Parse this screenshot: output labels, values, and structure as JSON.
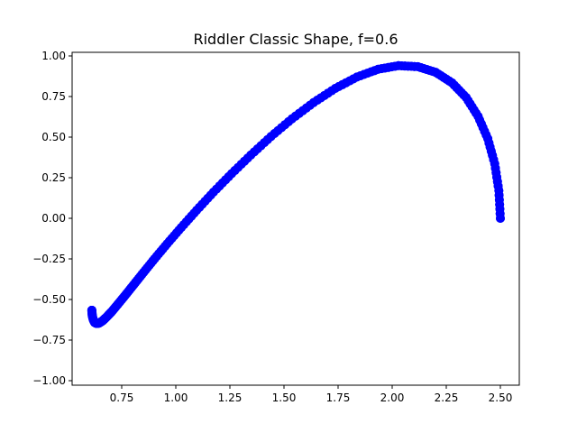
{
  "chart_data": {
    "type": "scatter",
    "title": "Riddler Classic Shape, f=0.6",
    "xlabel": "",
    "ylabel": "",
    "xlim": [
      0.56,
      2.6
    ],
    "ylim": [
      -1.02,
      1.03
    ],
    "xticks": [
      0.75,
      1.0,
      1.25,
      1.5,
      1.75,
      2.0,
      2.25,
      2.5
    ],
    "xtick_labels": [
      "0.75",
      "1.00",
      "1.25",
      "1.50",
      "1.75",
      "2.00",
      "2.25",
      "2.50"
    ],
    "yticks": [
      -1.0,
      -0.75,
      -0.5,
      -0.25,
      0.0,
      0.25,
      0.5,
      0.75,
      1.0
    ],
    "ytick_labels": [
      "−1.00",
      "−0.75",
      "−0.50",
      "−0.25",
      "0.00",
      "0.25",
      "0.50",
      "0.75",
      "1.00"
    ],
    "grid": false,
    "legend": "none",
    "marker_color": "#0000ff",
    "series": [
      {
        "x": [
          2.5,
          2.493,
          2.474,
          2.442,
          2.397,
          2.342,
          2.276,
          2.201,
          2.118,
          2.029,
          1.935,
          1.837,
          1.737,
          1.637,
          1.537,
          1.44,
          1.347,
          1.258,
          1.174,
          1.096,
          1.025,
          0.96,
          0.902,
          0.851,
          0.806,
          0.767,
          0.733,
          0.705,
          0.681,
          0.662,
          0.646,
          0.634,
          0.625,
          0.619,
          0.614,
          0.612,
          0.612,
          0.614,
          0.619,
          0.625,
          0.634,
          0.646,
          0.662,
          0.681,
          0.705,
          0.733,
          0.767,
          0.806,
          0.851,
          0.902,
          0.96,
          1.025,
          1.096,
          1.174,
          1.258,
          1.347,
          1.44,
          1.537,
          1.637,
          1.737,
          1.837,
          1.935,
          2.029,
          2.118,
          2.201,
          2.276,
          2.342,
          2.397,
          2.442,
          2.474,
          2.493,
          2.5
        ],
        "y": [
          0.0,
          0.171,
          0.336,
          0.49,
          0.628,
          0.744,
          0.835,
          0.899,
          0.934,
          0.94,
          0.918,
          0.87,
          0.8,
          0.713,
          0.613,
          0.504,
          0.39,
          0.275,
          0.161,
          0.049,
          -0.057,
          -0.157,
          -0.249,
          -0.333,
          -0.408,
          -0.473,
          -0.528,
          -0.573,
          -0.607,
          -0.631,
          -0.645,
          -0.648,
          -0.642,
          -0.626,
          -0.601,
          -0.567,
          -0.567,
          -0.601,
          -0.626,
          -0.642,
          -0.648,
          -0.645,
          -0.631,
          -0.607,
          -0.573,
          -0.528,
          -0.473,
          -0.408,
          -0.333,
          -0.249,
          -0.157,
          -0.057,
          0.049,
          0.161,
          0.275,
          0.39,
          0.504,
          0.613,
          0.713,
          0.8,
          0.87,
          0.918,
          0.94,
          0.934,
          0.899,
          0.835,
          0.744,
          0.628,
          0.49,
          0.336,
          0.171,
          0.0
        ]
      }
    ]
  }
}
